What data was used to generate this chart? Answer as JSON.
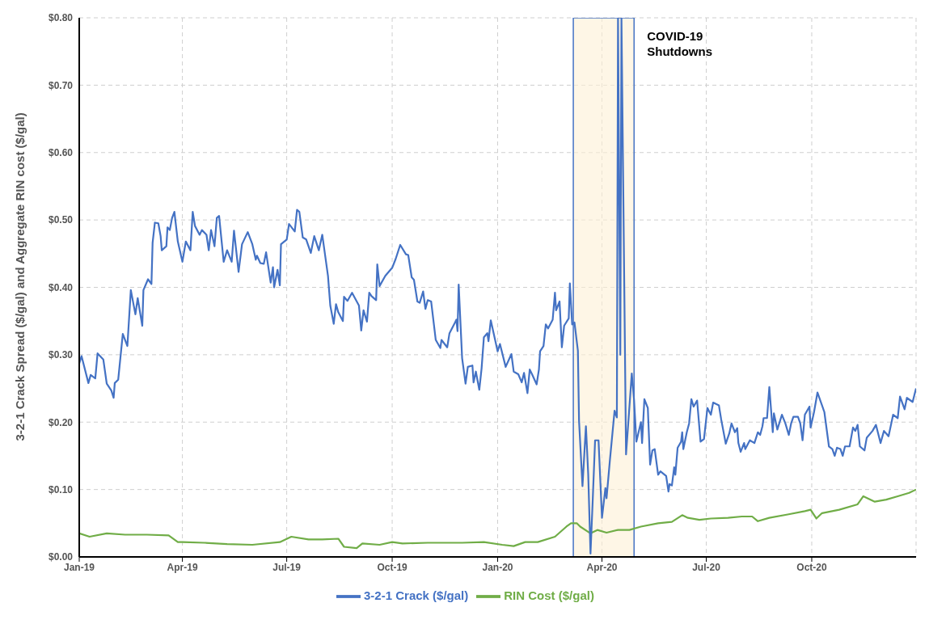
{
  "chart_data": {
    "type": "line",
    "ylabel": "3-2-1 Crack Spread ($/gal) and Aggregate RIN cost ($/gal)",
    "xlim": [
      "2019-01-01",
      "2020-12-31"
    ],
    "xticks": [
      {
        "value": "2019-01-01",
        "label": "Jan-19"
      },
      {
        "value": "2019-04-01",
        "label": "Apr-19"
      },
      {
        "value": "2019-07-01",
        "label": "Jul-19"
      },
      {
        "value": "2019-10-01",
        "label": "Oct-19"
      },
      {
        "value": "2020-01-01",
        "label": "Jan-20"
      },
      {
        "value": "2020-04-01",
        "label": "Apr-20"
      },
      {
        "value": "2020-07-01",
        "label": "Jul-20"
      },
      {
        "value": "2020-10-01",
        "label": "Oct-20"
      }
    ],
    "ylim": [
      0,
      0.8
    ],
    "yticks": [
      {
        "value": 0,
        "label": "$0.00"
      },
      {
        "value": 0.1,
        "label": "$0.10"
      },
      {
        "value": 0.2,
        "label": "$0.20"
      },
      {
        "value": 0.3,
        "label": "$0.30"
      },
      {
        "value": 0.4,
        "label": "$0.40"
      },
      {
        "value": 0.5,
        "label": "$0.50"
      },
      {
        "value": 0.6,
        "label": "$0.60"
      },
      {
        "value": 0.7,
        "label": "$0.70"
      },
      {
        "value": 0.8,
        "label": "$0.80"
      }
    ],
    "grid": true,
    "legend": "bottom",
    "marker": "none",
    "line_style": "solid",
    "bands": [
      {
        "axis": "x",
        "from": "2020-03-07",
        "to": "2020-04-29",
        "label": "COVID-19 Shutdowns",
        "color": "#fdf0d5"
      }
    ],
    "series": [
      {
        "name": "RIN Cost ($/gal)",
        "color": "#70ad47",
        "x": [
          "2019-01-01",
          "2019-01-10",
          "2019-01-25",
          "2019-02-10",
          "2019-03-01",
          "2019-03-20",
          "2019-03-28",
          "2019-04-01",
          "2019-04-20",
          "2019-05-10",
          "2019-06-01",
          "2019-06-25",
          "2019-07-05",
          "2019-07-20",
          "2019-08-01",
          "2019-08-15",
          "2019-08-20",
          "2019-08-31",
          "2019-09-05",
          "2019-09-20",
          "2019-10-01",
          "2019-10-10",
          "2019-11-01",
          "2019-12-01",
          "2019-12-20",
          "2020-01-05",
          "2020-01-15",
          "2020-01-25",
          "2020-02-05",
          "2020-02-20",
          "2020-03-01",
          "2020-03-05",
          "2020-03-10",
          "2020-03-13",
          "2020-03-22",
          "2020-03-28",
          "2020-04-05",
          "2020-04-15",
          "2020-04-25",
          "2020-05-05",
          "2020-05-20",
          "2020-06-01",
          "2020-06-10",
          "2020-06-15",
          "2020-06-25",
          "2020-07-05",
          "2020-07-20",
          "2020-08-01",
          "2020-08-10",
          "2020-08-15",
          "2020-08-25",
          "2020-09-10",
          "2020-09-25",
          "2020-09-30",
          "2020-10-05",
          "2020-10-10",
          "2020-10-25",
          "2020-11-10",
          "2020-11-15",
          "2020-11-25",
          "2020-12-05",
          "2020-12-15",
          "2020-12-25",
          "2020-12-31"
        ],
        "values": [
          0.035,
          0.03,
          0.035,
          0.033,
          0.033,
          0.032,
          0.022,
          0.022,
          0.021,
          0.019,
          0.018,
          0.022,
          0.03,
          0.026,
          0.026,
          0.027,
          0.015,
          0.013,
          0.02,
          0.018,
          0.022,
          0.02,
          0.021,
          0.021,
          0.022,
          0.018,
          0.016,
          0.022,
          0.022,
          0.03,
          0.045,
          0.05,
          0.05,
          0.045,
          0.035,
          0.04,
          0.036,
          0.04,
          0.04,
          0.045,
          0.05,
          0.052,
          0.062,
          0.058,
          0.055,
          0.057,
          0.058,
          0.06,
          0.06,
          0.053,
          0.058,
          0.063,
          0.068,
          0.07,
          0.057,
          0.065,
          0.07,
          0.078,
          0.09,
          0.082,
          0.085,
          0.09,
          0.095,
          0.1
        ]
      },
      {
        "name": "3-2-1 Crack ($/gal)",
        "color": "#4472c4",
        "x": [
          "2019-01-01",
          "2019-01-03",
          "2019-01-09",
          "2019-01-11",
          "2019-01-15",
          "2019-01-17",
          "2019-01-22",
          "2019-01-25",
          "2019-01-29",
          "2019-01-31",
          "2019-02-01",
          "2019-02-04",
          "2019-02-08",
          "2019-02-12",
          "2019-02-15",
          "2019-02-19",
          "2019-02-21",
          "2019-02-25",
          "2019-02-26",
          "2019-03-02",
          "2019-03-05",
          "2019-03-06",
          "2019-03-08",
          "2019-03-11",
          "2019-03-13",
          "2019-03-14",
          "2019-03-18",
          "2019-03-19",
          "2019-03-21",
          "2019-03-23",
          "2019-03-25",
          "2019-03-28",
          "2019-04-01",
          "2019-04-04",
          "2019-04-08",
          "2019-04-10",
          "2019-04-12",
          "2019-04-16",
          "2019-04-18",
          "2019-04-22",
          "2019-04-24",
          "2019-04-26",
          "2019-04-29",
          "2019-05-01",
          "2019-05-03",
          "2019-05-07",
          "2019-05-10",
          "2019-05-14",
          "2019-05-16",
          "2019-05-20",
          "2019-05-23",
          "2019-05-28",
          "2019-06-01",
          "2019-06-04",
          "2019-06-05",
          "2019-06-08",
          "2019-06-11",
          "2019-06-13",
          "2019-06-17",
          "2019-06-19",
          "2019-06-20",
          "2019-06-23",
          "2019-06-25",
          "2019-06-26",
          "2019-07-01",
          "2019-07-03",
          "2019-07-08",
          "2019-07-10",
          "2019-07-12",
          "2019-07-15",
          "2019-07-18",
          "2019-07-22",
          "2019-07-25",
          "2019-07-29",
          "2019-08-01",
          "2019-08-06",
          "2019-08-08",
          "2019-08-11",
          "2019-08-13",
          "2019-08-15",
          "2019-08-19",
          "2019-08-20",
          "2019-08-23",
          "2019-08-27",
          "2019-09-02",
          "2019-09-04",
          "2019-09-06",
          "2019-09-09",
          "2019-09-11",
          "2019-09-13",
          "2019-09-17",
          "2019-09-18",
          "2019-09-20",
          "2019-09-25",
          "2019-10-01",
          "2019-10-04",
          "2019-10-08",
          "2019-10-13",
          "2019-10-15",
          "2019-10-18",
          "2019-10-20",
          "2019-10-23",
          "2019-10-25",
          "2019-10-28",
          "2019-10-30",
          "2019-11-01",
          "2019-11-04",
          "2019-11-08",
          "2019-11-12",
          "2019-11-13",
          "2019-11-18",
          "2019-11-20",
          "2019-11-24",
          "2019-11-26",
          "2019-11-27",
          "2019-11-28",
          "2019-12-01",
          "2019-12-04",
          "2019-12-06",
          "2019-12-10",
          "2019-12-11",
          "2019-12-13",
          "2019-12-16",
          "2019-12-18",
          "2019-12-20",
          "2019-12-23",
          "2019-12-24",
          "2019-12-26",
          "2020-01-01",
          "2020-01-03",
          "2020-01-08",
          "2020-01-13",
          "2020-01-15",
          "2020-01-19",
          "2020-01-22",
          "2020-01-24",
          "2020-01-27",
          "2020-01-29",
          "2020-01-31",
          "2020-02-04",
          "2020-02-06",
          "2020-02-07",
          "2020-02-10",
          "2020-02-12",
          "2020-02-14",
          "2020-02-18",
          "2020-02-20",
          "2020-02-21",
          "2020-02-24",
          "2020-02-26",
          "2020-02-28",
          "2020-03-03",
          "2020-03-04",
          "2020-03-06",
          "2020-03-08",
          "2020-03-11",
          "2020-03-12",
          "2020-03-15",
          "2020-03-18",
          "2020-03-20",
          "2020-03-22",
          "2020-03-24",
          "2020-03-26",
          "2020-03-29",
          "2020-04-01",
          "2020-04-04",
          "2020-04-05",
          "2020-04-08",
          "2020-04-12",
          "2020-04-14",
          "2020-04-15",
          "2020-04-17",
          "2020-04-18",
          "2020-04-22",
          "2020-04-27",
          "2020-04-29",
          "2020-05-01",
          "2020-05-05",
          "2020-05-06",
          "2020-05-08",
          "2020-05-11",
          "2020-05-13",
          "2020-05-15",
          "2020-05-17",
          "2020-05-20",
          "2020-05-22",
          "2020-05-27",
          "2020-05-29",
          "2020-05-30",
          "2020-06-01",
          "2020-06-03",
          "2020-06-04",
          "2020-06-06",
          "2020-06-09",
          "2020-06-10",
          "2020-06-11",
          "2020-06-14",
          "2020-06-16",
          "2020-06-18",
          "2020-06-20",
          "2020-06-23",
          "2020-06-26",
          "2020-06-29",
          "2020-07-02",
          "2020-07-05",
          "2020-07-07",
          "2020-07-12",
          "2020-07-14",
          "2020-07-18",
          "2020-07-21",
          "2020-07-23",
          "2020-07-26",
          "2020-07-28",
          "2020-07-29",
          "2020-07-31",
          "2020-08-03",
          "2020-08-04",
          "2020-08-08",
          "2020-08-12",
          "2020-08-15",
          "2020-08-17",
          "2020-08-19",
          "2020-08-20",
          "2020-08-23",
          "2020-08-25",
          "2020-08-28",
          "2020-08-29",
          "2020-09-01",
          "2020-09-05",
          "2020-09-08",
          "2020-09-11",
          "2020-09-13",
          "2020-09-15",
          "2020-09-19",
          "2020-09-21",
          "2020-09-23",
          "2020-09-25",
          "2020-09-29",
          "2020-09-30",
          "2020-10-03",
          "2020-10-06",
          "2020-10-12",
          "2020-10-16",
          "2020-10-19",
          "2020-10-21",
          "2020-10-23",
          "2020-10-26",
          "2020-10-28",
          "2020-10-30",
          "2020-11-03",
          "2020-11-06",
          "2020-11-08",
          "2020-11-10",
          "2020-11-12",
          "2020-11-16",
          "2020-11-18",
          "2020-11-23",
          "2020-11-26",
          "2020-11-30",
          "2020-12-03",
          "2020-12-07",
          "2020-12-11",
          "2020-12-15",
          "2020-12-17",
          "2020-12-21",
          "2020-12-23",
          "2020-12-28",
          "2020-12-31"
        ],
        "values": [
          0.287,
          0.298,
          0.258,
          0.27,
          0.265,
          0.302,
          0.293,
          0.257,
          0.247,
          0.236,
          0.258,
          0.263,
          0.331,
          0.313,
          0.396,
          0.36,
          0.384,
          0.343,
          0.396,
          0.412,
          0.405,
          0.466,
          0.496,
          0.495,
          0.476,
          0.455,
          0.461,
          0.489,
          0.485,
          0.503,
          0.512,
          0.468,
          0.438,
          0.468,
          0.455,
          0.512,
          0.491,
          0.478,
          0.485,
          0.478,
          0.455,
          0.485,
          0.461,
          0.503,
          0.506,
          0.438,
          0.455,
          0.438,
          0.484,
          0.423,
          0.464,
          0.482,
          0.464,
          0.441,
          0.447,
          0.436,
          0.435,
          0.452,
          0.407,
          0.43,
          0.4,
          0.426,
          0.403,
          0.464,
          0.471,
          0.494,
          0.483,
          0.515,
          0.512,
          0.474,
          0.471,
          0.451,
          0.476,
          0.455,
          0.478,
          0.417,
          0.373,
          0.346,
          0.375,
          0.363,
          0.35,
          0.386,
          0.38,
          0.392,
          0.373,
          0.336,
          0.366,
          0.349,
          0.392,
          0.387,
          0.381,
          0.434,
          0.402,
          0.417,
          0.429,
          0.442,
          0.463,
          0.449,
          0.448,
          0.415,
          0.411,
          0.379,
          0.377,
          0.394,
          0.368,
          0.381,
          0.379,
          0.322,
          0.31,
          0.322,
          0.311,
          0.332,
          0.345,
          0.352,
          0.335,
          0.404,
          0.295,
          0.257,
          0.282,
          0.284,
          0.259,
          0.275,
          0.248,
          0.28,
          0.326,
          0.332,
          0.32,
          0.351,
          0.305,
          0.316,
          0.282,
          0.301,
          0.275,
          0.271,
          0.259,
          0.273,
          0.243,
          0.278,
          0.271,
          0.256,
          0.278,
          0.305,
          0.313,
          0.345,
          0.339,
          0.352,
          0.392,
          0.366,
          0.379,
          0.311,
          0.343,
          0.354,
          0.406,
          0.345,
          0.348,
          0.306,
          0.202,
          0.105,
          0.194,
          0.123,
          0.005,
          0.087,
          0.173,
          0.173,
          0.058,
          0.102,
          0.087,
          0.145,
          0.217,
          0.207,
          0.8,
          0.3,
          0.8,
          0.152,
          0.272,
          0.233,
          0.171,
          0.2,
          0.169,
          0.234,
          0.221,
          0.137,
          0.158,
          0.16,
          0.122,
          0.127,
          0.12,
          0.097,
          0.108,
          0.106,
          0.133,
          0.122,
          0.162,
          0.171,
          0.185,
          0.16,
          0.185,
          0.198,
          0.234,
          0.223,
          0.232,
          0.171,
          0.175,
          0.221,
          0.211,
          0.229,
          0.225,
          0.204,
          0.168,
          0.183,
          0.198,
          0.185,
          0.191,
          0.169,
          0.156,
          0.169,
          0.16,
          0.173,
          0.169,
          0.185,
          0.181,
          0.194,
          0.206,
          0.206,
          0.252,
          0.185,
          0.213,
          0.189,
          0.211,
          0.198,
          0.181,
          0.198,
          0.208,
          0.208,
          0.198,
          0.173,
          0.211,
          0.223,
          0.192,
          0.215,
          0.244,
          0.215,
          0.164,
          0.16,
          0.15,
          0.162,
          0.16,
          0.15,
          0.164,
          0.164,
          0.192,
          0.187,
          0.196,
          0.164,
          0.158,
          0.177,
          0.187,
          0.196,
          0.169,
          0.187,
          0.179,
          0.211,
          0.206,
          0.238,
          0.219,
          0.236,
          0.23,
          0.25
        ]
      }
    ]
  }
}
